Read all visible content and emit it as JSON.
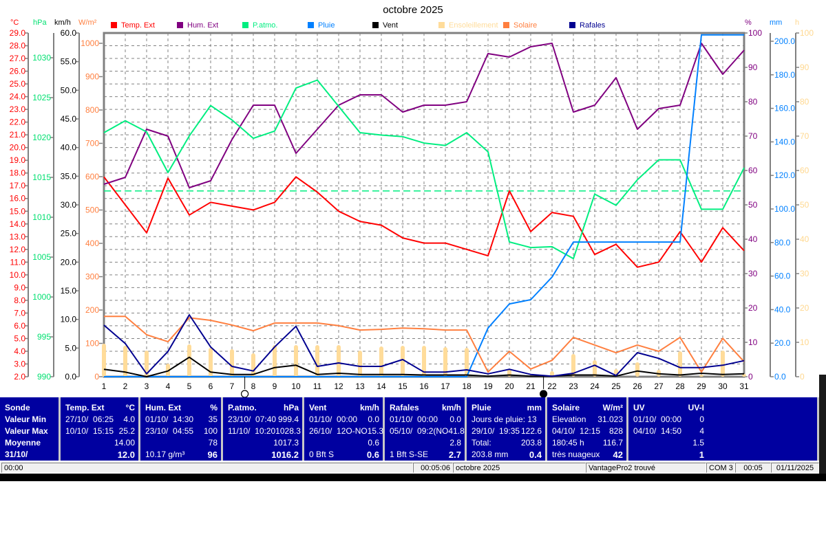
{
  "chart_data": {
    "type": "line",
    "title": "octobre 2025",
    "x": [
      1,
      2,
      3,
      4,
      5,
      6,
      7,
      8,
      9,
      10,
      11,
      12,
      13,
      14,
      15,
      16,
      17,
      18,
      19,
      20,
      21,
      22,
      23,
      24,
      25,
      26,
      27,
      28,
      29,
      30,
      31
    ],
    "axes": {
      "temp": {
        "unit": "°C",
        "color": "#ff0000",
        "range": [
          2,
          29
        ],
        "ticks": [
          "2.0",
          "3.0",
          "4.0",
          "5.0",
          "6.0",
          "7.0",
          "8.0",
          "9.0",
          "10.0",
          "11.0",
          "12.0",
          "13.0",
          "14.0",
          "15.0",
          "16.0",
          "17.0",
          "18.0",
          "19.0",
          "20.0",
          "21.0",
          "22.0",
          "23.0",
          "24.0",
          "25.0",
          "26.0",
          "27.0",
          "28.0",
          "29.0"
        ]
      },
      "press": {
        "unit": "hPa",
        "color": "#00e070",
        "range": [
          990,
          1033
        ],
        "ticks": [
          "990",
          "995",
          "1000",
          "1005",
          "1010",
          "1015",
          "1020",
          "1025",
          "1030"
        ]
      },
      "wind": {
        "unit": "km/h",
        "color": "#000000",
        "range": [
          0,
          60
        ],
        "ticks": [
          "0.0",
          "5.0",
          "10.0",
          "15.0",
          "20.0",
          "25.0",
          "30.0",
          "35.0",
          "40.0",
          "45.0",
          "50.0",
          "55.0",
          "60.0"
        ]
      },
      "solar": {
        "unit": "W/m²",
        "color": "#ff7f3f",
        "range": [
          0,
          1031
        ],
        "ticks": [
          "0",
          "100",
          "200",
          "300",
          "400",
          "500",
          "600",
          "700",
          "800",
          "900",
          "1000"
        ]
      },
      "hum": {
        "unit": "%",
        "color": "#800080",
        "range": [
          0,
          100
        ],
        "ticks": [
          "0",
          "10",
          "20",
          "30",
          "40",
          "50",
          "60",
          "70",
          "80",
          "90",
          "100"
        ]
      },
      "rain": {
        "unit": "mm",
        "color": "#0080ff",
        "range": [
          0,
          205
        ],
        "ticks": [
          "0.0",
          "20.0",
          "40.0",
          "60.0",
          "80.0",
          "100.0",
          "120.0",
          "140.0",
          "160.0",
          "180.0",
          "200.0"
        ]
      },
      "sun": {
        "unit": "h",
        "color": "#ffe0a0",
        "range": [
          0,
          100
        ],
        "ticks": [
          "0",
          "10",
          "20",
          "30",
          "40",
          "50",
          "60",
          "70",
          "80",
          "90",
          "100"
        ]
      }
    },
    "series": [
      {
        "name": "Ensoleillement",
        "axis": "sun",
        "kind": "bar",
        "color": "#ffdc9a",
        "values": [
          9.6,
          9,
          7.6,
          3.8,
          9.4,
          8.4,
          8,
          6.8,
          9.2,
          9.2,
          9.2,
          9.2,
          7.6,
          8.8,
          9,
          9,
          8.6,
          8.4,
          0,
          2.2,
          0.4,
          1.6,
          6.6,
          4.8,
          2.2,
          4.2,
          2,
          7.4,
          0.6,
          7.6,
          0.8
        ]
      },
      {
        "name": "Temp. Ext",
        "axis": "temp",
        "color": "#ff0000",
        "values": [
          17.7,
          15.5,
          13.3,
          17.6,
          14.7,
          15.7,
          15.4,
          15.1,
          15.7,
          17.7,
          16.5,
          15.0,
          14.2,
          13.9,
          12.9,
          12.5,
          12.5,
          12.0,
          11.5,
          16.6,
          13.4,
          14.9,
          14.6,
          11.6,
          12.4,
          10.6,
          11.0,
          13.4,
          11.0,
          13.7,
          11.9
        ]
      },
      {
        "name": "Hum. Ext",
        "axis": "hum",
        "color": "#800080",
        "values": [
          56,
          58,
          72,
          70,
          55,
          57,
          69,
          79,
          79,
          65,
          72,
          79,
          82,
          82,
          77,
          79,
          79,
          80,
          94,
          93,
          96,
          97,
          77,
          79,
          87,
          72,
          78,
          79,
          97,
          88,
          95
        ]
      },
      {
        "name": "P.atmo.",
        "axis": "press",
        "color": "#00ee80",
        "values": [
          1020.6,
          1022.1,
          1020.7,
          1015.6,
          1020.2,
          1024.0,
          1022.2,
          1019.9,
          1020.8,
          1026.2,
          1027.2,
          1023.9,
          1020.6,
          1020.3,
          1020.1,
          1019.3,
          1019.0,
          1020.6,
          1018.2,
          1006.9,
          1006.2,
          1006.3,
          1004.8,
          1012.9,
          1011.5,
          1014.7,
          1017.2,
          1017.2,
          1011.0,
          1011.0,
          1016.2
        ]
      },
      {
        "name": "Pluie",
        "axis": "rain",
        "color": "#0080ff",
        "values": [
          0,
          0,
          0,
          0,
          0,
          0,
          0,
          0,
          0,
          0,
          0,
          0,
          0,
          0,
          0,
          0,
          0,
          0,
          29,
          43.4,
          45.9,
          59.4,
          80.3,
          80.3,
          80.3,
          80.3,
          80.3,
          80.3,
          203.8,
          203.8,
          203.8
        ]
      },
      {
        "name": "Vent",
        "axis": "wind",
        "color": "#000000",
        "values": [
          1.3,
          0.8,
          0,
          1.0,
          3.4,
          0.8,
          0.4,
          0.4,
          1.6,
          2.0,
          0.4,
          0.6,
          0.4,
          0.4,
          0.4,
          0.3,
          0.3,
          0.3,
          0.1,
          0.3,
          0.1,
          0.1,
          0.3,
          0.3,
          0.1,
          1.0,
          0.5,
          0.3,
          0.6,
          0.4,
          0.5
        ]
      },
      {
        "name": "Solaire",
        "axis": "solar",
        "color": "#ff7f3f",
        "values": [
          181,
          181,
          126,
          105,
          177,
          169,
          155,
          138,
          161,
          161,
          161,
          153,
          140,
          142,
          146,
          144,
          140,
          140,
          14,
          76,
          23,
          49,
          118,
          95,
          72,
          95,
          76,
          118,
          14,
          115,
          45
        ]
      },
      {
        "name": "Rafales",
        "axis": "wind",
        "color": "#000090",
        "values": [
          9.0,
          5.8,
          0.5,
          4.4,
          10.8,
          5.2,
          1.8,
          1.0,
          5.2,
          8.8,
          1.8,
          2.4,
          1.8,
          1.8,
          3.0,
          0.8,
          0.8,
          1.2,
          0.5,
          1.3,
          0.4,
          0.1,
          0.6,
          2.0,
          0.2,
          4.2,
          3.2,
          1.6,
          1.6,
          2.0,
          2.8
        ]
      }
    ],
    "reference_line": {
      "axis": "press",
      "value": 1013.3,
      "style": "dashed"
    },
    "moon_phases": [
      {
        "day": 7.6,
        "phase": "full"
      },
      {
        "day": 21.6,
        "phase": "new"
      }
    ],
    "grid": true
  },
  "legend": [
    "Temp. Ext",
    "Hum. Ext",
    "P.atmo.",
    "Pluie",
    "Vent",
    "Ensoleillement",
    "Solaire",
    "Rafales"
  ],
  "table": {
    "labels": [
      "Sonde",
      "Valeur Min",
      "Valeur Max",
      "Moyenne",
      "31/10/"
    ],
    "columns": [
      {
        "name": "Temp. Ext",
        "unit": "°C",
        "rows": [
          [
            "27/10/  06:25",
            "4.0"
          ],
          [
            "10/10/  15:15",
            "25.2"
          ],
          [
            "",
            "14.00"
          ],
          [
            "",
            "12.0"
          ]
        ]
      },
      {
        "name": "Hum. Ext",
        "unit": "%",
        "rows": [
          [
            "01/10/  14:30",
            "35"
          ],
          [
            "23/10/  04:55",
            "100"
          ],
          [
            "",
            "78"
          ],
          [
            "10.17 g/m³",
            "96"
          ]
        ]
      },
      {
        "name": "P.atmo.",
        "unit": "hPa",
        "rows": [
          [
            "23/10/  07:40",
            "999.4"
          ],
          [
            "11/10/  10:20",
            "1028.3"
          ],
          [
            "",
            "1017.3"
          ],
          [
            "",
            "1016.2"
          ]
        ]
      },
      {
        "name": "Vent",
        "unit": "km/h",
        "rows": [
          [
            "01/10/  00:00",
            "0.0"
          ],
          [
            "26/10/  12O-NO",
            "15.3"
          ],
          [
            "",
            "0.6"
          ],
          [
            "0 Bft S",
            "0.6"
          ]
        ]
      },
      {
        "name": "Rafales",
        "unit": "km/h",
        "rows": [
          [
            "01/10/  00:00",
            "0.0"
          ],
          [
            "05/10/  09:2(NO",
            "41.8"
          ],
          [
            "",
            "2.8"
          ],
          [
            "1 Bft S-SE",
            "2.7"
          ]
        ]
      },
      {
        "name": "Pluie",
        "unit": "mm",
        "rows": [
          [
            "Jours de pluie: 13",
            ""
          ],
          [
            "29/10/  19:35",
            "122.6"
          ],
          [
            "Total:",
            "203.8"
          ],
          [
            "203.8 mm",
            "0.4"
          ]
        ]
      },
      {
        "name": "Solaire",
        "unit": "W/m²",
        "rows": [
          [
            "Elevation",
            "31.023"
          ],
          [
            "04/10/  12:15",
            "828"
          ],
          [
            "180:45 h",
            "116.7"
          ],
          [
            "très nuageux",
            "42"
          ]
        ]
      },
      {
        "name": "UV",
        "unit": "UV-I",
        "rows": [
          [
            "01/10/  00:00",
            "0"
          ],
          [
            "04/10/  14:50",
            "4"
          ],
          [
            "",
            "1.5"
          ],
          [
            "",
            "1"
          ]
        ]
      }
    ]
  },
  "status": {
    "time": "00:00",
    "elapsed": "00:05:06",
    "period": "octobre 2025",
    "station": "VantagePro2 trouvé",
    "port": "COM 3",
    "clock": "00:05",
    "date": "01/11/2025"
  }
}
